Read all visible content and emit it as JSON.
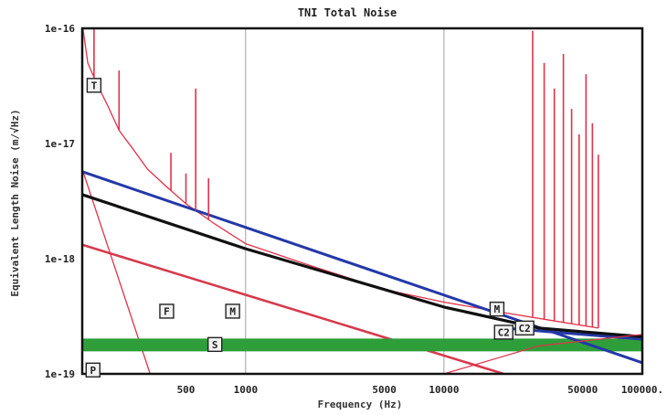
{
  "chart_data": {
    "type": "line",
    "title": "TNI Total Noise",
    "xlabel": "Frequency (Hz)",
    "ylabel": "Equivalent Length Noise (m/√Hz)",
    "x_scale": "log",
    "y_scale": "log",
    "xlim": [
      150,
      100000
    ],
    "ylim": [
      1e-19,
      1e-16
    ],
    "x_ticks": [
      {
        "value": 500,
        "label": "500"
      },
      {
        "value": 1000,
        "label": "1000"
      },
      {
        "value": 5000,
        "label": "5000"
      },
      {
        "value": 10000,
        "label": "10000"
      },
      {
        "value": 50000,
        "label": "50000"
      },
      {
        "value": 100000,
        "label": "100000."
      }
    ],
    "y_ticks": [
      {
        "value": 1e-19,
        "label": "1e-19"
      },
      {
        "value": 1e-18,
        "label": "1e-18"
      },
      {
        "value": 1e-17,
        "label": "1e-17"
      },
      {
        "value": 1e-16,
        "label": "1e-16"
      }
    ],
    "x_gridlines": [
      1000,
      10000
    ],
    "series": [
      {
        "name": "T",
        "color": "#e2324a",
        "width": 1.3,
        "x": [
          150,
          160,
          175,
          200,
          230,
          270,
          320,
          400,
          500,
          700,
          1000,
          2000,
          5000,
          10000,
          20000,
          40000,
          60000
        ],
        "y": [
          1.1e-16,
          5e-17,
          3.5e-17,
          2.2e-17,
          1.3e-17,
          9e-18,
          6e-18,
          4.2e-18,
          3e-18,
          2e-18,
          1.35e-18,
          9e-19,
          5.4e-19,
          4.2e-19,
          3.4e-19,
          2.8e-19,
          2.5e-19
        ]
      },
      {
        "name": "M",
        "color": "#d63a4e",
        "width": 2.6,
        "x": [
          150,
          20000
        ],
        "y": [
          1.32e-18,
          1e-19
        ]
      },
      {
        "name": "F",
        "color": "#e2324a",
        "width": 1.3,
        "x": [
          150,
          330
        ],
        "y": [
          6e-18,
          1e-19
        ]
      },
      {
        "name": "S",
        "color": "#2e9e3a",
        "width": 14,
        "x": [
          150,
          100000
        ],
        "y": [
          1.78e-19,
          1.78e-19
        ]
      },
      {
        "name": "blue",
        "color": "#2438a8",
        "width": 3,
        "x": [
          150,
          100000
        ],
        "y": [
          5.7e-18,
          1.25e-19
        ]
      },
      {
        "name": "blue",
        "color": "#2438a8",
        "width": 3,
        "x": [
          20000,
          100000
        ],
        "y": [
          2.5e-19,
          2e-19
        ]
      },
      {
        "name": "total",
        "color": "#111111",
        "width": 3.2,
        "x": [
          150,
          1000,
          10000,
          30000,
          100000
        ],
        "y": [
          3.6e-18,
          1.22e-18,
          3.8e-19,
          2.5e-19,
          2.1e-19
        ]
      },
      {
        "name": "C2",
        "color": "#e2324a",
        "width": 1.2,
        "x": [
          10000,
          30000,
          100000
        ],
        "y": [
          1e-19,
          1.75e-19,
          2.2e-19
        ]
      }
    ],
    "peaks": [
      {
        "x": 172,
        "y": 1.1e-16
      },
      {
        "x": 230,
        "y": 4.3e-17
      },
      {
        "x": 420,
        "y": 8.3e-18
      },
      {
        "x": 500,
        "y": 5.5e-18
      },
      {
        "x": 560,
        "y": 3e-17
      },
      {
        "x": 650,
        "y": 5e-18
      },
      {
        "x": 28000,
        "y": 9.5e-17
      },
      {
        "x": 32000,
        "y": 5e-17
      },
      {
        "x": 36000,
        "y": 3e-17
      },
      {
        "x": 40000,
        "y": 6e-17
      },
      {
        "x": 44000,
        "y": 2e-17
      },
      {
        "x": 48000,
        "y": 1.2e-17
      },
      {
        "x": 52000,
        "y": 4e-17
      },
      {
        "x": 56000,
        "y": 1.5e-17
      },
      {
        "x": 60000,
        "y": 8e-18
      }
    ],
    "tags": [
      {
        "text": "T",
        "x": 172,
        "y": 3.2e-17
      },
      {
        "text": "F",
        "x": 400,
        "y": 3.5e-19
      },
      {
        "text": "M",
        "x": 860,
        "y": 3.5e-19
      },
      {
        "text": "S",
        "x": 700,
        "y": 1.8e-19
      },
      {
        "text": "P",
        "x": 170,
        "y": 1.08e-19
      },
      {
        "text": "M",
        "x": 18500,
        "y": 3.65e-19
      },
      {
        "text": "C2",
        "x": 20000,
        "y": 2.3e-19
      },
      {
        "text": "C2",
        "x": 25500,
        "y": 2.5e-19
      }
    ],
    "grid": false,
    "legend": "none"
  }
}
